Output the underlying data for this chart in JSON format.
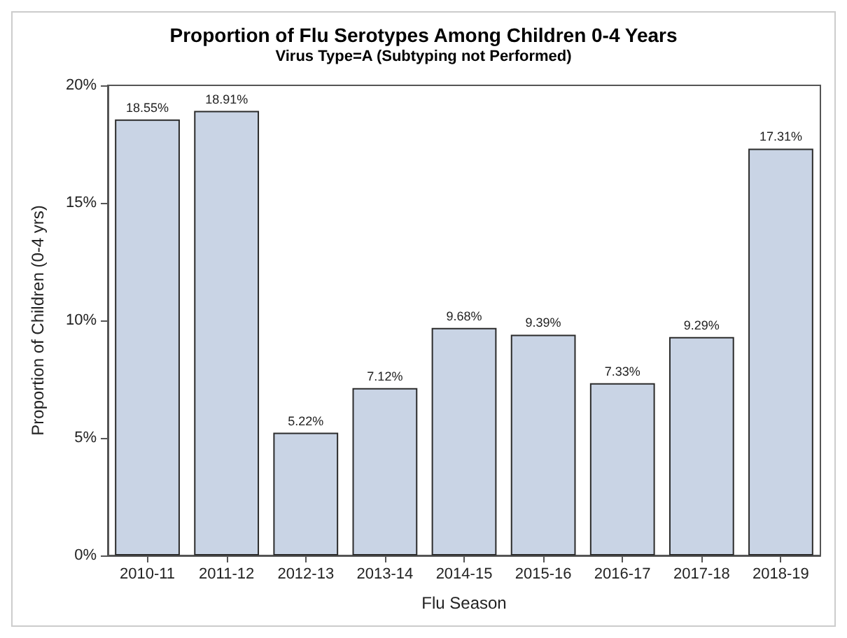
{
  "chart_data": {
    "type": "bar",
    "title": "Proportion of Flu Serotypes Among Children 0-4 Years",
    "subtitle": "Virus Type=A (Subtyping not Performed)",
    "xlabel": "Flu Season",
    "ylabel": "Proportion of Children (0-4 yrs)",
    "categories": [
      "2010-11",
      "2011-12",
      "2012-13",
      "2013-14",
      "2014-15",
      "2015-16",
      "2016-17",
      "2017-18",
      "2018-19"
    ],
    "values": [
      18.55,
      18.91,
      5.22,
      7.12,
      9.68,
      9.39,
      7.33,
      9.29,
      17.31
    ],
    "value_labels": [
      "18.55%",
      "18.91%",
      "5.22%",
      "7.12%",
      "9.68%",
      "9.39%",
      "7.33%",
      "9.29%",
      "17.31%"
    ],
    "color": "#c9d4e5",
    "ylim": [
      0,
      20
    ],
    "yticks": [
      {
        "value": 0,
        "label": "0%"
      },
      {
        "value": 5,
        "label": "5%"
      },
      {
        "value": 10,
        "label": "10%"
      },
      {
        "value": 15,
        "label": "15%"
      },
      {
        "value": 20,
        "label": "20%"
      }
    ],
    "grid": false
  }
}
